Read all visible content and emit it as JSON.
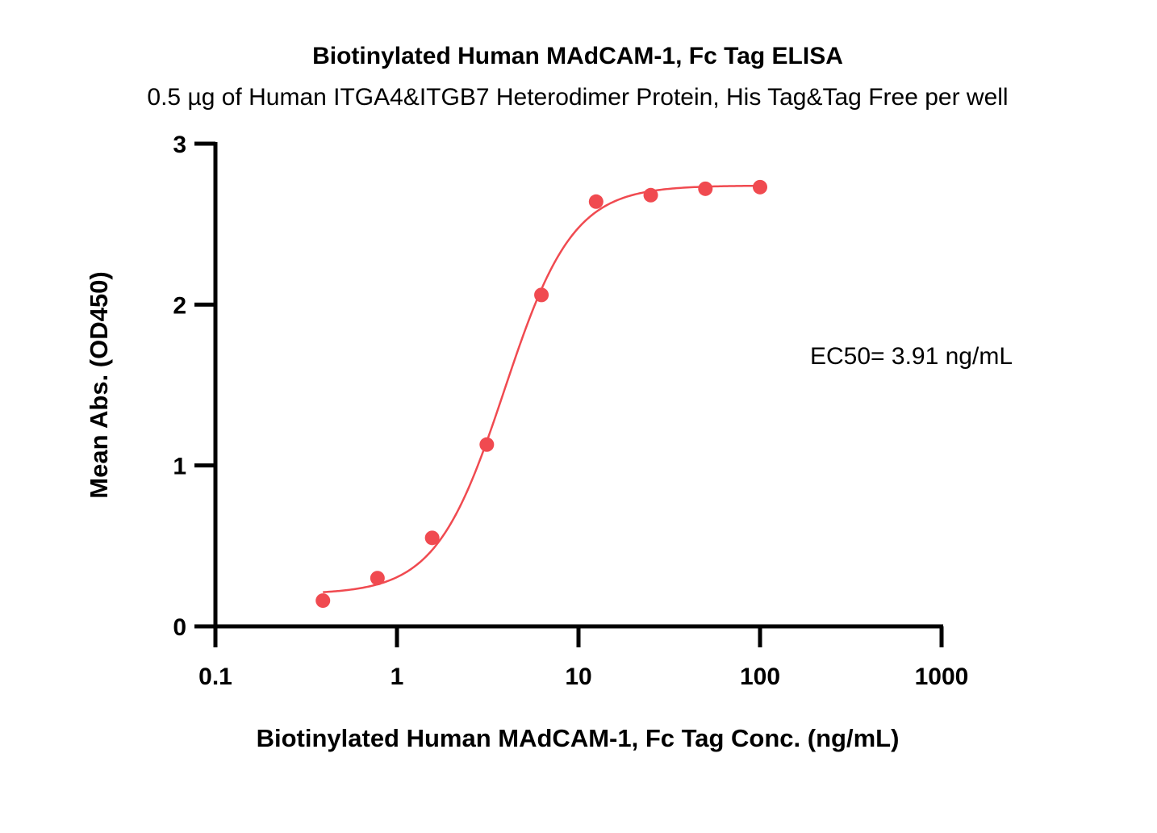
{
  "chart_data": {
    "type": "scatter",
    "title": "Biotinylated Human MAdCAM-1, Fc Tag ELISA",
    "subtitle": "0.5 µg of Human ITGA4&ITGB7 Heterodimer Protein, His Tag&Tag Free per well",
    "xlabel": "Biotinylated Human MAdCAM-1, Fc Tag Conc. (ng/mL)",
    "ylabel": "Mean Abs. (OD450)",
    "xscale": "log",
    "xlim": [
      0.1,
      1000
    ],
    "ylim": [
      0,
      3
    ],
    "xticks": [
      0.1,
      1,
      10,
      100,
      1000
    ],
    "xtick_labels": [
      "0.1",
      "1",
      "10",
      "100",
      "1000"
    ],
    "yticks": [
      0,
      1,
      2,
      3
    ],
    "ytick_labels": [
      "0",
      "1",
      "2",
      "3"
    ],
    "grid": false,
    "series": [
      {
        "x": [
          0.391,
          0.781,
          1.563,
          3.125,
          6.25,
          12.5,
          25,
          50,
          100
        ],
        "y": [
          0.16,
          0.3,
          0.55,
          1.13,
          2.06,
          2.64,
          2.68,
          2.72,
          2.73
        ],
        "color": "#f04a50",
        "fit": {
          "model": "4PL",
          "bottom": 0.2,
          "top": 2.74,
          "ec50": 3.91,
          "hill": 2.3,
          "range": [
            0.391,
            100
          ]
        }
      }
    ],
    "annotations": [
      {
        "text": "EC50= 3.91 ng/mL"
      }
    ]
  }
}
